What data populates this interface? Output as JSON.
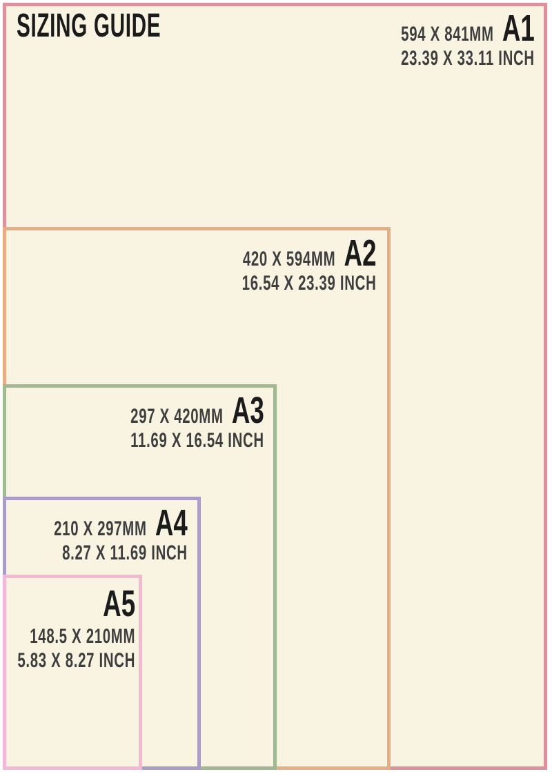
{
  "title": "SIZING GUIDE",
  "colors": {
    "background_cream": "#f9f3e2",
    "page_margin": "#ffffff",
    "dimension_text": "#3e3e3e",
    "label_text": "#1b1b1b",
    "a1_border": "#dd9199",
    "a2_border": "#e6ae82",
    "a3_border": "#a1b992",
    "a4_border": "#a99dc6",
    "a5_border": "#f4b7d5"
  },
  "sizes": [
    {
      "label": "A1",
      "mm": "594 X 841MM",
      "inch": "23.39 X 33.11 INCH",
      "border_color": "#dd9199"
    },
    {
      "label": "A2",
      "mm": "420 X 594MM",
      "inch": "16.54 X 23.39 INCH",
      "border_color": "#e6ae82"
    },
    {
      "label": "A3",
      "mm": "297 X 420MM",
      "inch": "11.69 X 16.54 INCH",
      "border_color": "#a1b992"
    },
    {
      "label": "A4",
      "mm": "210 X 297MM",
      "inch": "8.27 X 11.69 INCH",
      "border_color": "#a99dc6"
    },
    {
      "label": "A5",
      "mm": "148.5 X 210MM",
      "inch": "5.83 X 8.27 INCH",
      "border_color": "#f4b7d5"
    }
  ]
}
